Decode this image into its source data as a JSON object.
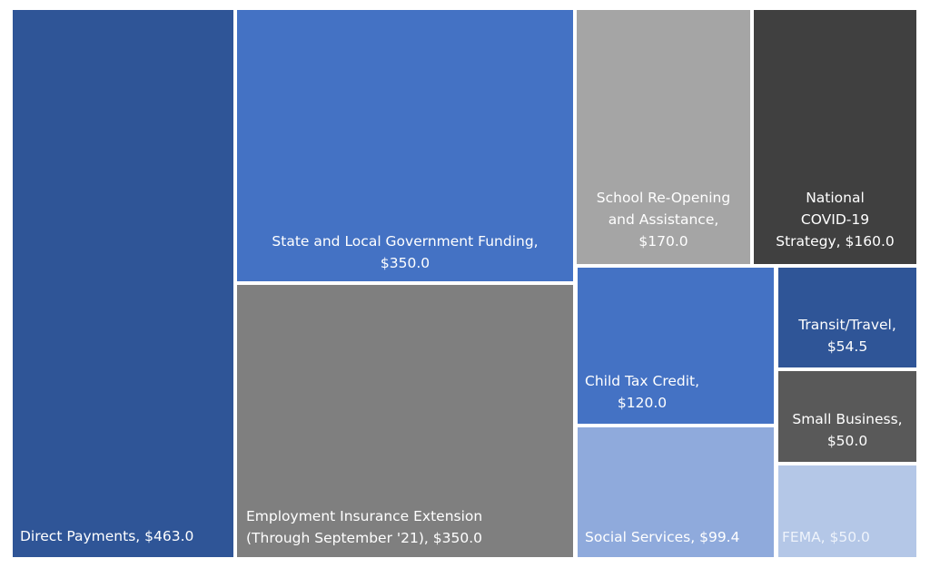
{
  "chart_data": {
    "type": "treemap",
    "items": [
      {
        "label": "Direct Payments",
        "value": 463.0,
        "display": "$463.0",
        "color": "#2F5597"
      },
      {
        "label": "State and Local Government Funding",
        "value": 350.0,
        "display": "$350.0",
        "color": "#4472C4"
      },
      {
        "label": "Employment Insurance Extension (Through September '21)",
        "value": 350.0,
        "display": "$350.0",
        "color": "#7F7F7F"
      },
      {
        "label": "School Re-Opening and Assistance",
        "value": 170.0,
        "display": "$170.0",
        "color": "#A5A5A5"
      },
      {
        "label": "National COVID-19 Strategy",
        "value": 160.0,
        "display": "$160.0",
        "color": "#404040"
      },
      {
        "label": "Child Tax Credit",
        "value": 120.0,
        "display": "$120.0",
        "color": "#4472C4"
      },
      {
        "label": "Social Services",
        "value": 99.4,
        "display": "$99.4",
        "color": "#8FAADC"
      },
      {
        "label": "Transit/Travel",
        "value": 54.5,
        "display": "$54.5",
        "color": "#2F5597"
      },
      {
        "label": "Small Business",
        "value": 50.0,
        "display": "$50.0",
        "color": "#595959"
      },
      {
        "label": "FEMA",
        "value": 50.0,
        "display": "$50.0",
        "color": "#B4C7E7"
      }
    ]
  }
}
